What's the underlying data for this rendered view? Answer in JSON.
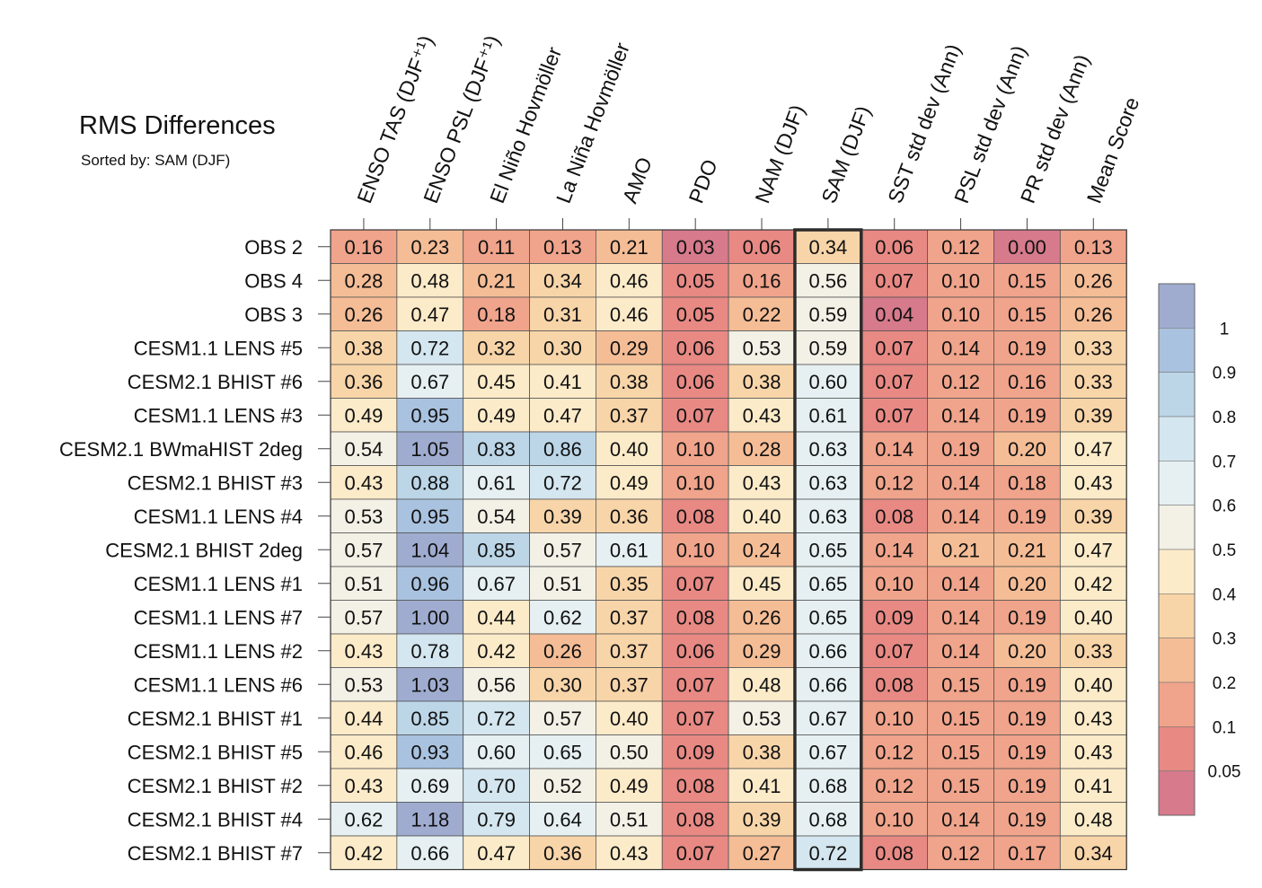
{
  "chart_data": {
    "type": "heatmap",
    "title": "RMS Differences",
    "subtitle": "Sorted by: SAM (DJF)",
    "highlight_column": "SAM (DJF)",
    "columns": [
      "ENSO TAS (DJF⁺¹)",
      "ENSO PSL (DJF⁺¹)",
      "El Niño Hovmöller",
      "La Niña Hovmöller",
      "AMO",
      "PDO",
      "NAM (DJF)",
      "SAM (DJF)",
      "SST std dev (Ann)",
      "PSL std dev (Ann)",
      "PR std dev (Ann)",
      "Mean Score"
    ],
    "rows": [
      "OBS 2",
      "OBS 4",
      "OBS 3",
      "CESM1.1 LENS #5",
      "CESM2.1 BHIST #6",
      "CESM1.1 LENS #3",
      "CESM2.1 BWmaHIST 2deg",
      "CESM2.1 BHIST #3",
      "CESM1.1 LENS #4",
      "CESM2.1 BHIST 2deg",
      "CESM1.1 LENS #1",
      "CESM1.1 LENS #7",
      "CESM1.1 LENS #2",
      "CESM1.1 LENS #6",
      "CESM2.1 BHIST #1",
      "CESM2.1 BHIST #5",
      "CESM2.1 BHIST #2",
      "CESM2.1 BHIST #4",
      "CESM2.1 BHIST #7"
    ],
    "values": [
      [
        "0.16",
        "0.23",
        "0.11",
        "0.13",
        "0.21",
        "0.03",
        "0.06",
        "0.34",
        "0.06",
        "0.12",
        "0.00",
        "0.13"
      ],
      [
        "0.28",
        "0.48",
        "0.21",
        "0.34",
        "0.46",
        "0.05",
        "0.16",
        "0.56",
        "0.07",
        "0.10",
        "0.15",
        "0.26"
      ],
      [
        "0.26",
        "0.47",
        "0.18",
        "0.31",
        "0.46",
        "0.05",
        "0.22",
        "0.59",
        "0.04",
        "0.10",
        "0.15",
        "0.26"
      ],
      [
        "0.38",
        "0.72",
        "0.32",
        "0.30",
        "0.29",
        "0.06",
        "0.53",
        "0.59",
        "0.07",
        "0.14",
        "0.19",
        "0.33"
      ],
      [
        "0.36",
        "0.67",
        "0.45",
        "0.41",
        "0.38",
        "0.06",
        "0.38",
        "0.60",
        "0.07",
        "0.12",
        "0.16",
        "0.33"
      ],
      [
        "0.49",
        "0.95",
        "0.49",
        "0.47",
        "0.37",
        "0.07",
        "0.43",
        "0.61",
        "0.07",
        "0.14",
        "0.19",
        "0.39"
      ],
      [
        "0.54",
        "1.05",
        "0.83",
        "0.86",
        "0.40",
        "0.10",
        "0.28",
        "0.63",
        "0.14",
        "0.19",
        "0.20",
        "0.47"
      ],
      [
        "0.43",
        "0.88",
        "0.61",
        "0.72",
        "0.49",
        "0.10",
        "0.43",
        "0.63",
        "0.12",
        "0.14",
        "0.18",
        "0.43"
      ],
      [
        "0.53",
        "0.95",
        "0.54",
        "0.39",
        "0.36",
        "0.08",
        "0.40",
        "0.63",
        "0.08",
        "0.14",
        "0.19",
        "0.39"
      ],
      [
        "0.57",
        "1.04",
        "0.85",
        "0.57",
        "0.61",
        "0.10",
        "0.24",
        "0.65",
        "0.14",
        "0.21",
        "0.21",
        "0.47"
      ],
      [
        "0.51",
        "0.96",
        "0.67",
        "0.51",
        "0.35",
        "0.07",
        "0.45",
        "0.65",
        "0.10",
        "0.14",
        "0.20",
        "0.42"
      ],
      [
        "0.57",
        "1.00",
        "0.44",
        "0.62",
        "0.37",
        "0.08",
        "0.26",
        "0.65",
        "0.09",
        "0.14",
        "0.19",
        "0.40"
      ],
      [
        "0.43",
        "0.78",
        "0.42",
        "0.26",
        "0.37",
        "0.06",
        "0.29",
        "0.66",
        "0.07",
        "0.14",
        "0.20",
        "0.33"
      ],
      [
        "0.53",
        "1.03",
        "0.56",
        "0.30",
        "0.37",
        "0.07",
        "0.48",
        "0.66",
        "0.08",
        "0.15",
        "0.19",
        "0.40"
      ],
      [
        "0.44",
        "0.85",
        "0.72",
        "0.57",
        "0.40",
        "0.07",
        "0.53",
        "0.67",
        "0.10",
        "0.15",
        "0.19",
        "0.43"
      ],
      [
        "0.46",
        "0.93",
        "0.60",
        "0.65",
        "0.50",
        "0.09",
        "0.38",
        "0.67",
        "0.12",
        "0.15",
        "0.19",
        "0.43"
      ],
      [
        "0.43",
        "0.69",
        "0.70",
        "0.52",
        "0.49",
        "0.08",
        "0.41",
        "0.68",
        "0.12",
        "0.15",
        "0.19",
        "0.41"
      ],
      [
        "0.62",
        "1.18",
        "0.79",
        "0.64",
        "0.51",
        "0.08",
        "0.39",
        "0.68",
        "0.10",
        "0.14",
        "0.19",
        "0.48"
      ],
      [
        "0.42",
        "0.66",
        "0.47",
        "0.36",
        "0.43",
        "0.07",
        "0.27",
        "0.72",
        "0.08",
        "0.12",
        "0.17",
        "0.34"
      ]
    ],
    "colorbar": {
      "tick_labels": [
        "1",
        "0.9",
        "0.8",
        "0.7",
        "0.6",
        "0.5",
        "0.4",
        "0.3",
        "0.2",
        "0.1",
        "0.05"
      ],
      "thresholds": [
        1,
        0.9,
        0.8,
        0.7,
        0.6,
        0.5,
        0.4,
        0.3,
        0.2,
        0.1,
        0.05
      ],
      "colors": [
        "#9facd0",
        "#a9c2df",
        "#bcd6e8",
        "#d4e6ef",
        "#e6f0f2",
        "#f3f1e6",
        "#fcebc9",
        "#f8d5a9",
        "#f5bd96",
        "#f0a48b",
        "#e88984",
        "#d67a8c"
      ]
    }
  }
}
